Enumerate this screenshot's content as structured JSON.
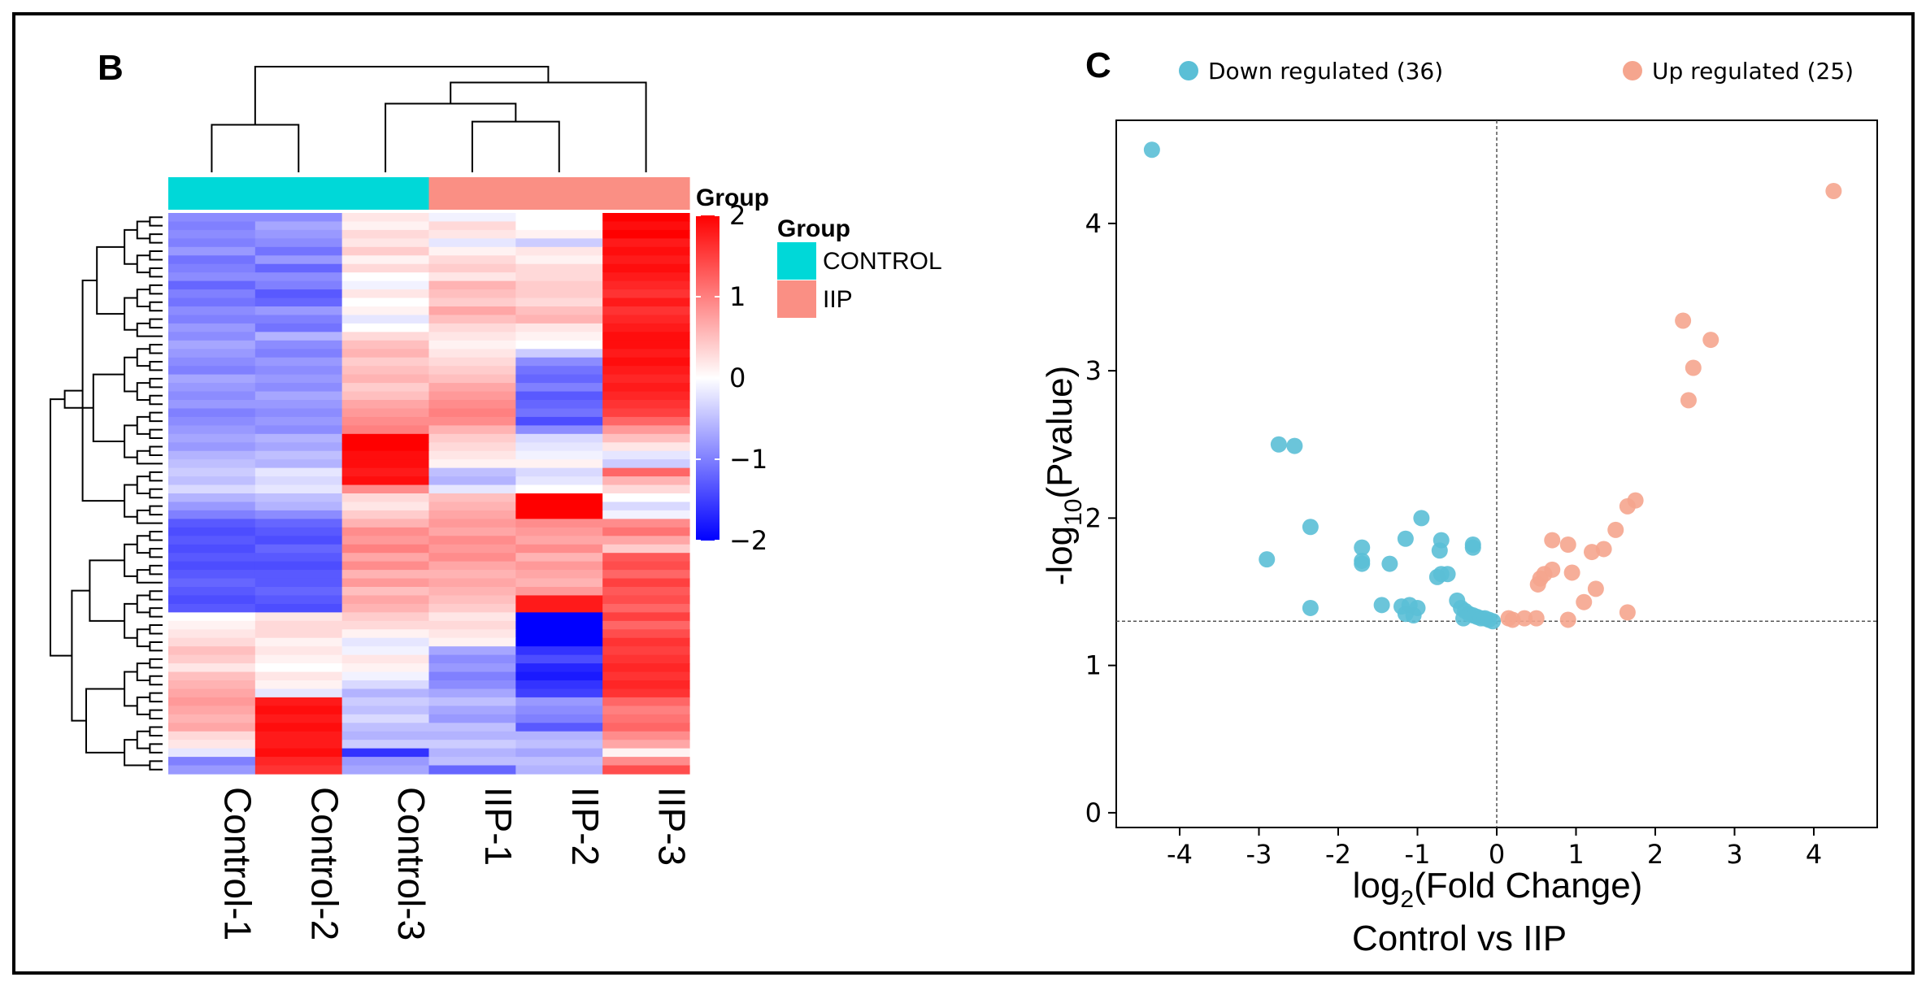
{
  "figure": {
    "border_color": "#000000"
  },
  "chart_data": [
    {
      "type": "heatmap",
      "panel_label": "B",
      "columns": [
        "Control-1",
        "Control-2",
        "Control-3",
        "IIP-1",
        "IIP-2",
        "IIP-3"
      ],
      "column_groups": [
        "CONTROL",
        "CONTROL",
        "CONTROL",
        "IIP",
        "IIP",
        "IIP"
      ],
      "group_annotation": {
        "title": "Group",
        "legend_title": "Group",
        "levels": [
          {
            "name": "CONTROL",
            "color": "#00d8d8"
          },
          {
            "name": "IIP",
            "color": "#fa8f84"
          }
        ]
      },
      "color_scale": {
        "title": "Group",
        "min": -2,
        "max": 2,
        "low_color": "#0000ff",
        "mid_color": "#ffffff",
        "high_color": "#ff0000",
        "ticks": [
          {
            "value": 2,
            "label": "2"
          },
          {
            "value": 1,
            "label": "1"
          },
          {
            "value": 0,
            "label": "0"
          },
          {
            "value": -1,
            "label": "−1"
          },
          {
            "value": -2,
            "label": "−2"
          }
        ]
      },
      "column_dendrogram": {
        "merges": [
          [
            0,
            1,
            0.45
          ],
          [
            3,
            4,
            0.48
          ],
          [
            2,
            7,
            0.65
          ],
          [
            5,
            8,
            0.85
          ],
          [
            6,
            9,
            1.0
          ]
        ]
      },
      "row_dendrogram": {
        "clusters": [
          {
            "rows": [
              0,
              7
            ],
            "height": 0.55
          },
          {
            "rows": [
              8,
              14
            ],
            "height": 0.65
          },
          {
            "rows": [
              15,
              22
            ],
            "height": 0.72
          },
          {
            "rows": [
              23,
              29
            ],
            "height": 0.6
          },
          {
            "rows": [
              30,
              36
            ],
            "height": 0.58
          },
          {
            "rows": [
              37,
              43
            ],
            "height": 0.52
          },
          {
            "rows": [
              44,
              51
            ],
            "height": 0.62
          },
          {
            "rows": [
              52,
              59
            ],
            "height": 0.55
          },
          {
            "rows": [
              60,
              65
            ],
            "height": 0.5
          }
        ]
      },
      "rows": [
        [
          -0.9,
          -0.9,
          0.2,
          -0.1,
          0.0,
          2.0
        ],
        [
          -1.0,
          -0.7,
          0.1,
          0.3,
          0.0,
          1.9
        ],
        [
          -0.9,
          -0.8,
          0.3,
          0.2,
          0.1,
          2.0
        ],
        [
          -1.0,
          -0.9,
          0.2,
          -0.2,
          -0.4,
          1.8
        ],
        [
          -0.8,
          -1.1,
          0.4,
          0.1,
          0.2,
          1.9
        ],
        [
          -1.1,
          -0.8,
          0.1,
          0.3,
          0.1,
          1.8
        ],
        [
          -1.0,
          -1.2,
          0.3,
          0.4,
          0.3,
          1.9
        ],
        [
          -0.9,
          -0.9,
          0.0,
          0.2,
          0.3,
          1.8
        ],
        [
          -1.2,
          -1.0,
          -0.1,
          0.6,
          0.4,
          1.7
        ],
        [
          -1.0,
          -1.3,
          0.2,
          0.5,
          0.4,
          1.6
        ],
        [
          -1.1,
          -1.2,
          0.0,
          0.4,
          0.3,
          1.8
        ],
        [
          -0.9,
          -0.8,
          0.1,
          0.7,
          0.5,
          1.6
        ],
        [
          -1.0,
          -1.0,
          -0.2,
          0.5,
          0.6,
          1.7
        ],
        [
          -0.8,
          -1.1,
          0.0,
          0.3,
          0.2,
          1.8
        ],
        [
          -0.9,
          -0.6,
          0.3,
          0.2,
          0.1,
          1.9
        ],
        [
          -0.7,
          -0.9,
          0.5,
          0.1,
          0.0,
          1.9
        ],
        [
          -0.8,
          -1.0,
          0.6,
          0.2,
          -0.4,
          1.8
        ],
        [
          -0.9,
          -0.8,
          0.4,
          0.3,
          -0.9,
          1.9
        ],
        [
          -1.0,
          -0.9,
          0.5,
          0.4,
          -1.1,
          1.8
        ],
        [
          -0.7,
          -0.8,
          0.6,
          0.5,
          -1.2,
          1.7
        ],
        [
          -0.8,
          -0.9,
          0.4,
          0.7,
          -1.0,
          1.8
        ],
        [
          -0.9,
          -0.7,
          0.5,
          0.8,
          -1.3,
          1.7
        ],
        [
          -0.8,
          -0.8,
          0.7,
          0.9,
          -1.2,
          1.6
        ],
        [
          -1.0,
          -0.9,
          0.8,
          1.0,
          -1.1,
          1.5
        ],
        [
          -0.9,
          -0.8,
          0.9,
          0.9,
          -1.4,
          1.2
        ],
        [
          -0.8,
          -0.9,
          1.0,
          0.6,
          -0.9,
          0.8
        ],
        [
          -0.7,
          -0.6,
          2.0,
          0.4,
          -0.3,
          0.5
        ],
        [
          -0.8,
          -0.7,
          2.0,
          0.3,
          -0.2,
          0.2
        ],
        [
          -0.6,
          -0.5,
          1.9,
          0.2,
          -0.1,
          -0.2
        ],
        [
          -0.5,
          -0.6,
          1.9,
          0.1,
          0.1,
          -0.4
        ],
        [
          -0.4,
          -0.2,
          1.8,
          -0.5,
          -0.3,
          1.2
        ],
        [
          -0.5,
          -0.3,
          1.9,
          -0.6,
          -0.2,
          0.6
        ],
        [
          -0.3,
          -0.2,
          0.9,
          -0.2,
          0.0,
          0.3
        ],
        [
          -0.6,
          -0.5,
          0.3,
          0.5,
          2.0,
          0.0
        ],
        [
          -0.8,
          -0.6,
          0.2,
          0.6,
          2.0,
          -0.3
        ],
        [
          -1.0,
          -0.9,
          0.4,
          0.7,
          2.0,
          -0.1
        ],
        [
          -1.3,
          -1.2,
          0.6,
          0.8,
          0.9,
          0.9
        ],
        [
          -1.4,
          -1.3,
          0.9,
          0.7,
          0.8,
          1.1
        ],
        [
          -1.3,
          -1.4,
          0.8,
          0.9,
          0.7,
          0.7
        ],
        [
          -1.4,
          -1.2,
          1.0,
          0.8,
          0.9,
          0.4
        ],
        [
          -1.3,
          -1.3,
          0.7,
          0.9,
          0.6,
          1.3
        ],
        [
          -1.4,
          -1.4,
          0.9,
          0.7,
          0.8,
          1.4
        ],
        [
          -1.3,
          -1.3,
          0.6,
          0.6,
          0.7,
          1.2
        ],
        [
          -1.2,
          -1.3,
          0.8,
          0.7,
          0.6,
          1.5
        ],
        [
          -1.3,
          -1.2,
          0.5,
          0.6,
          0.8,
          1.3
        ],
        [
          -1.4,
          -1.3,
          0.7,
          0.5,
          1.8,
          1.4
        ],
        [
          -1.3,
          -1.4,
          0.6,
          0.4,
          1.8,
          1.2
        ],
        [
          0.0,
          0.2,
          0.4,
          0.2,
          -2.0,
          1.5
        ],
        [
          0.1,
          0.3,
          0.3,
          0.3,
          -2.0,
          1.2
        ],
        [
          0.2,
          0.3,
          0.1,
          0.2,
          -2.0,
          1.4
        ],
        [
          0.3,
          0.1,
          -0.2,
          0.1,
          -2.0,
          1.6
        ],
        [
          0.5,
          0.2,
          -0.1,
          -0.7,
          -1.6,
          1.5
        ],
        [
          0.4,
          0.1,
          0.2,
          -0.9,
          -1.4,
          1.6
        ],
        [
          0.2,
          0.0,
          0.1,
          -0.8,
          -1.7,
          1.7
        ],
        [
          0.5,
          0.2,
          -0.1,
          -1.0,
          -1.8,
          1.6
        ],
        [
          0.6,
          0.1,
          -0.3,
          -0.9,
          -1.6,
          1.7
        ],
        [
          0.7,
          -0.2,
          -0.6,
          -0.7,
          -1.5,
          1.6
        ],
        [
          0.8,
          1.8,
          -0.4,
          -0.5,
          -0.8,
          1.2
        ],
        [
          0.7,
          1.9,
          -0.5,
          -0.7,
          -0.9,
          1.0
        ],
        [
          0.6,
          1.8,
          -0.3,
          -0.8,
          -1.0,
          1.1
        ],
        [
          0.7,
          1.9,
          -0.5,
          -0.5,
          -1.3,
          1.2
        ],
        [
          0.3,
          1.8,
          -0.6,
          -0.6,
          -0.6,
          0.9
        ],
        [
          0.2,
          1.8,
          -0.4,
          -0.4,
          -0.5,
          0.7
        ],
        [
          -0.2,
          1.9,
          -1.6,
          -0.6,
          -0.7,
          0.1
        ],
        [
          -1.0,
          1.7,
          -0.8,
          -0.5,
          -0.5,
          0.9
        ],
        [
          -0.8,
          1.6,
          -0.7,
          -1.2,
          -0.6,
          1.4
        ]
      ]
    },
    {
      "type": "scatter",
      "panel_label": "C",
      "title": "",
      "xlabel_base": "log",
      "xlabel_sub": "2",
      "xlabel_rest": "(Fold Change)",
      "ylabel_base": "-log",
      "ylabel_sub": "10",
      "ylabel_rest": "(Pvalue)",
      "subtitle": "Control vs IIP",
      "xlim": [
        -4.8,
        4.8
      ],
      "ylim": [
        -0.1,
        4.7
      ],
      "x_ticks": [
        {
          "value": -4,
          "label": "-4"
        },
        {
          "value": -3,
          "label": "-3"
        },
        {
          "value": -2,
          "label": "-2"
        },
        {
          "value": -1,
          "label": "-1"
        },
        {
          "value": 0,
          "label": "0"
        },
        {
          "value": 1,
          "label": "1"
        },
        {
          "value": 2,
          "label": "2"
        },
        {
          "value": 3,
          "label": "3"
        },
        {
          "value": 4,
          "label": "4"
        }
      ],
      "y_ticks": [
        {
          "value": 0,
          "label": "0"
        },
        {
          "value": 1,
          "label": "1"
        },
        {
          "value": 2,
          "label": "2"
        },
        {
          "value": 3,
          "label": "3"
        },
        {
          "value": 4,
          "label": "4"
        }
      ],
      "reference_lines": {
        "vertical_x": 0,
        "horizontal_y": 1.3
      },
      "legend_position": "top",
      "series": [
        {
          "name": "Down regulated (36)",
          "color": "#5bbfd6",
          "points": [
            [
              -4.35,
              4.5
            ],
            [
              -2.75,
              2.5
            ],
            [
              -2.55,
              2.49
            ],
            [
              -2.35,
              1.94
            ],
            [
              -2.9,
              1.72
            ],
            [
              -2.35,
              1.39
            ],
            [
              -1.7,
              1.8
            ],
            [
              -1.7,
              1.71
            ],
            [
              -1.7,
              1.69
            ],
            [
              -1.35,
              1.69
            ],
            [
              -1.45,
              1.41
            ],
            [
              -1.15,
              1.86
            ],
            [
              -0.95,
              2.0
            ],
            [
              -0.7,
              1.85
            ],
            [
              -0.72,
              1.78
            ],
            [
              -0.7,
              1.62
            ],
            [
              -0.62,
              1.62
            ],
            [
              -0.75,
              1.6
            ],
            [
              -0.3,
              1.82
            ],
            [
              -0.3,
              1.8
            ],
            [
              -1.2,
              1.4
            ],
            [
              -1.1,
              1.41
            ],
            [
              -1.0,
              1.39
            ],
            [
              -1.15,
              1.35
            ],
            [
              -1.05,
              1.34
            ],
            [
              -0.5,
              1.44
            ],
            [
              -0.45,
              1.39
            ],
            [
              -0.4,
              1.37
            ],
            [
              -0.35,
              1.35
            ],
            [
              -0.3,
              1.34
            ],
            [
              -0.25,
              1.33
            ],
            [
              -0.2,
              1.32
            ],
            [
              -0.15,
              1.32
            ],
            [
              -0.1,
              1.31
            ],
            [
              -0.05,
              1.3
            ],
            [
              -0.42,
              1.32
            ]
          ]
        },
        {
          "name": "Up regulated (25)",
          "color": "#f5a58e",
          "points": [
            [
              4.25,
              4.22
            ],
            [
              2.35,
              3.34
            ],
            [
              2.7,
              3.21
            ],
            [
              2.48,
              3.02
            ],
            [
              2.42,
              2.8
            ],
            [
              1.75,
              2.12
            ],
            [
              1.65,
              2.08
            ],
            [
              1.5,
              1.92
            ],
            [
              1.35,
              1.79
            ],
            [
              1.2,
              1.77
            ],
            [
              0.7,
              1.85
            ],
            [
              0.9,
              1.82
            ],
            [
              0.95,
              1.63
            ],
            [
              0.7,
              1.65
            ],
            [
              0.6,
              1.62
            ],
            [
              0.55,
              1.59
            ],
            [
              0.52,
              1.55
            ],
            [
              1.25,
              1.52
            ],
            [
              1.1,
              1.43
            ],
            [
              0.5,
              1.32
            ],
            [
              0.9,
              1.31
            ],
            [
              1.65,
              1.36
            ],
            [
              0.35,
              1.32
            ],
            [
              0.15,
              1.32
            ],
            [
              0.2,
              1.31
            ]
          ]
        }
      ]
    }
  ]
}
